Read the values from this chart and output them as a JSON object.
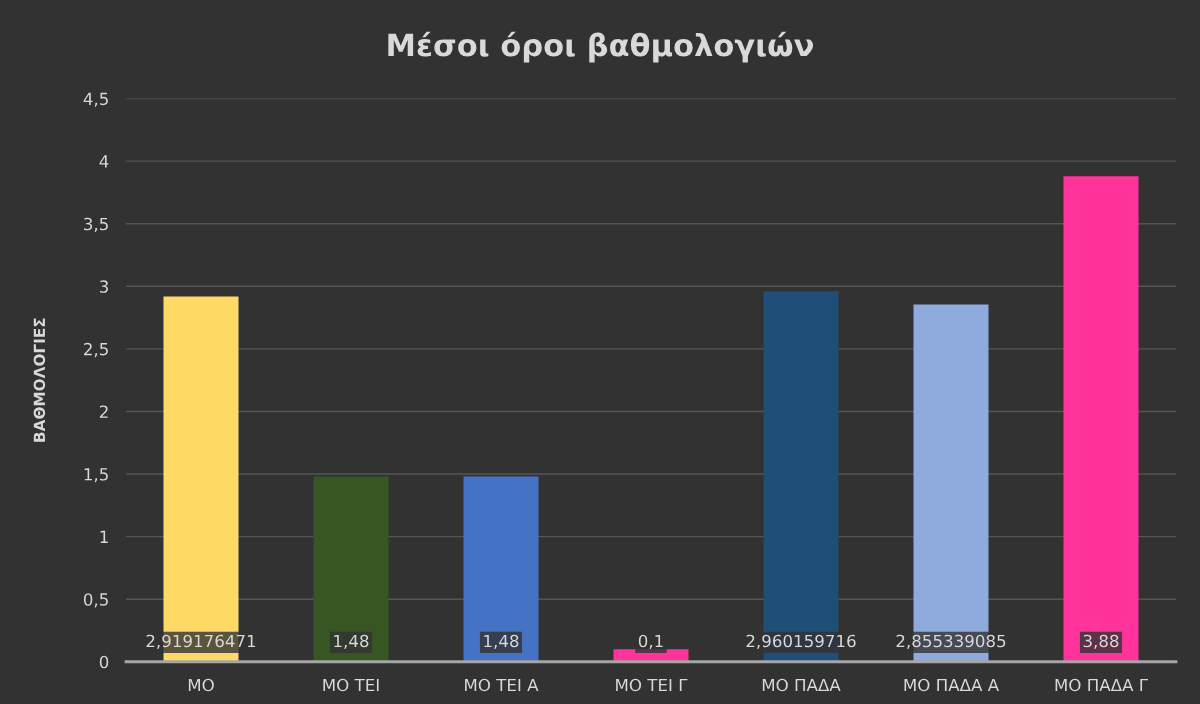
{
  "chart_data": {
    "type": "bar",
    "title": "Μέσοι όροι βαθμολογιών",
    "ylabel": "ΒΑΘΜΟΛΟΓΙΕΣ",
    "categories": [
      "ΜΟ",
      "ΜΟ ΤΕΙ",
      "ΜΟ ΤΕΙ Α",
      "ΜΟ ΤΕΙ Γ",
      "ΜΟ ΠΑΔΑ",
      "ΜΟ ΠΑΔΑ Α",
      "ΜΟ ΠΑΔΑ Γ"
    ],
    "values": [
      2.919176471,
      1.48,
      1.48,
      0.1,
      2.960159716,
      2.855339085,
      3.88
    ],
    "value_labels": [
      "2,919176471",
      "1,48",
      "1,48",
      "0,1",
      "2,960159716",
      "2,855339085",
      "3,88"
    ],
    "colors": [
      "#ffd966",
      "#375623",
      "#4472c4",
      "#ff3399",
      "#1f4e79",
      "#8faadc",
      "#ff3399"
    ],
    "ylim": [
      0,
      4.5
    ],
    "yticks": [
      0,
      {
        "value": 0.5,
        "label": "0,5"
      },
      1,
      {
        "value": 1.5,
        "label": "1,5"
      },
      2,
      {
        "value": 2.5,
        "label": "2,5"
      },
      3,
      {
        "value": 3.5,
        "label": "3,5"
      },
      4,
      {
        "value": 4.5,
        "label": "4,5"
      }
    ],
    "grid": "y"
  }
}
